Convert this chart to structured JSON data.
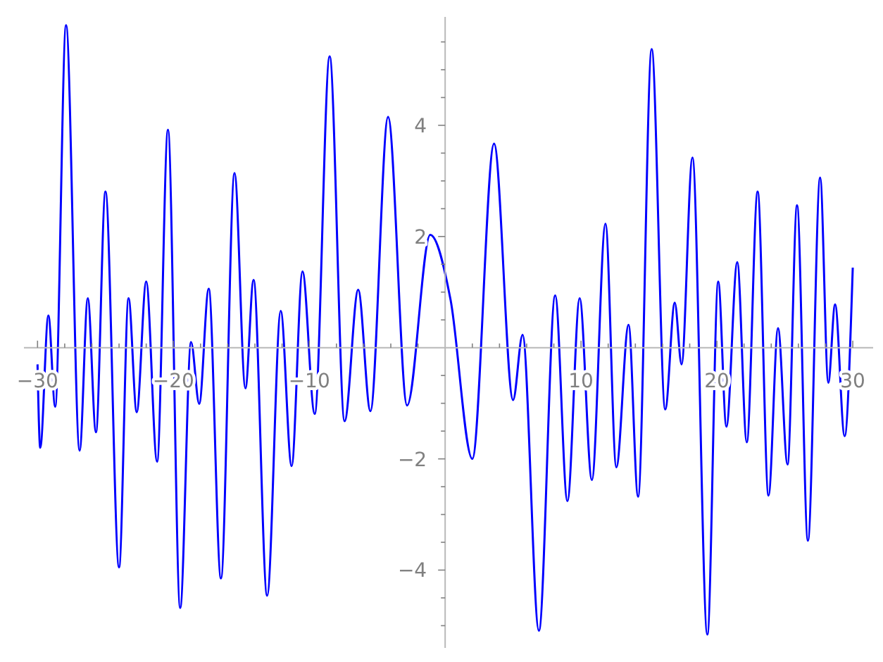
{
  "chart_data": {
    "type": "line",
    "x": [
      -30,
      -29.8,
      -29.2,
      -28.7,
      -27.9,
      -26.9,
      -26.3,
      -25.7,
      -25.0,
      -24.0,
      -23.3,
      -22.7,
      -22.0,
      -21.2,
      -20.4,
      -19.5,
      -18.7,
      -18.1,
      -17.4,
      -16.5,
      -15.5,
      -14.7,
      -14.1,
      -13.1,
      -12.1,
      -11.3,
      -10.5,
      -9.6,
      -8.5,
      -7.4,
      -6.4,
      -5.5,
      -4.2,
      -2.8,
      -1.1,
      0.4,
      2.0,
      3.6,
      5.0,
      5.7,
      6.9,
      8.1,
      9.0,
      9.9,
      10.8,
      11.8,
      12.6,
      13.5,
      14.2,
      15.2,
      16.2,
      16.9,
      17.4,
      18.2,
      19.3,
      20.1,
      20.7,
      21.5,
      22.2,
      23.0,
      23.8,
      24.5,
      25.2,
      25.9,
      26.7,
      27.6,
      28.2,
      28.7,
      29.4,
      30
    ],
    "series": [
      {
        "color": "#0000ff",
        "values": [
          -0.3,
          -1.8,
          0.58,
          -1.06,
          5.8,
          -1.85,
          0.89,
          -1.52,
          2.81,
          -3.95,
          0.89,
          -1.16,
          1.19,
          -2.05,
          3.92,
          -4.68,
          0.1,
          -1.01,
          1.06,
          -4.15,
          3.14,
          -0.73,
          1.22,
          -4.46,
          0.66,
          -2.13,
          1.37,
          -1.19,
          5.24,
          -1.32,
          1.04,
          -1.14,
          4.15,
          -1.04,
          2.03,
          0.86,
          -2.0,
          3.67,
          -0.94,
          0.23,
          -5.09,
          0.94,
          -2.76,
          0.89,
          -2.38,
          2.23,
          -2.15,
          0.41,
          -2.68,
          5.37,
          -1.11,
          0.81,
          -0.3,
          3.42,
          -5.16,
          1.19,
          -1.42,
          1.54,
          -1.7,
          2.81,
          -2.66,
          0.35,
          -2.1,
          2.56,
          -3.47,
          3.06,
          -0.63,
          0.78,
          -1.59,
          1.44
        ]
      }
    ],
    "xlim": [
      -31,
      31.5
    ],
    "ylim": [
      -5.4,
      5.95
    ],
    "xticks": [
      {
        "value": -30,
        "label": "−30"
      },
      {
        "value": -28,
        "label": null
      },
      {
        "value": -26,
        "label": null
      },
      {
        "value": -24,
        "label": null
      },
      {
        "value": -22,
        "label": null
      },
      {
        "value": -20,
        "label": "−20"
      },
      {
        "value": -18,
        "label": null
      },
      {
        "value": -16,
        "label": null
      },
      {
        "value": -14,
        "label": null
      },
      {
        "value": -12,
        "label": null
      },
      {
        "value": -10,
        "label": "−10"
      },
      {
        "value": -8,
        "label": null
      },
      {
        "value": -6,
        "label": null
      },
      {
        "value": -4,
        "label": null
      },
      {
        "value": -2,
        "label": null
      },
      {
        "value": 2,
        "label": null
      },
      {
        "value": 4,
        "label": null
      },
      {
        "value": 6,
        "label": null
      },
      {
        "value": 8,
        "label": null
      },
      10,
      {
        "value": 12,
        "label": null
      },
      {
        "value": 14,
        "label": null
      },
      {
        "value": 16,
        "label": null
      },
      {
        "value": 18,
        "label": null
      },
      20,
      {
        "value": 22,
        "label": null
      },
      {
        "value": 24,
        "label": null
      },
      {
        "value": 26,
        "label": null
      },
      {
        "value": 28,
        "label": null
      },
      30
    ],
    "yticks": [
      {
        "value": -5,
        "label": null
      },
      {
        "value": -4.5,
        "label": null
      },
      {
        "value": -4,
        "label": "−4"
      },
      {
        "value": -3.5,
        "label": null
      },
      {
        "value": -3,
        "label": null
      },
      {
        "value": -2.5,
        "label": null
      },
      {
        "value": -2,
        "label": "−2"
      },
      {
        "value": -1.5,
        "label": null
      },
      {
        "value": -1,
        "label": null
      },
      {
        "value": -0.5,
        "label": null
      },
      {
        "value": 0.5,
        "label": null
      },
      {
        "value": 1,
        "label": null
      },
      {
        "value": 1.5,
        "label": null
      },
      2,
      {
        "value": 2.5,
        "label": null
      },
      {
        "value": 3,
        "label": null
      },
      {
        "value": 3.5,
        "label": null
      },
      4,
      {
        "value": 4.5,
        "label": null
      },
      {
        "value": 5,
        "label": null
      },
      {
        "value": 5.5,
        "label": null
      }
    ],
    "marker": "none",
    "line_style": "solid"
  }
}
